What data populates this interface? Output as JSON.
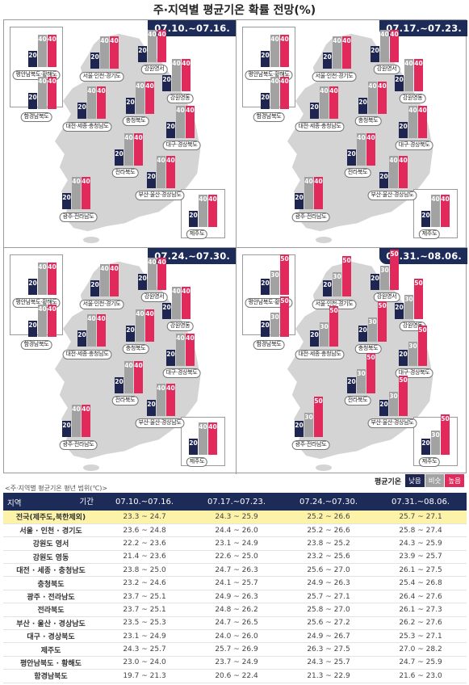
{
  "title": "주·지역별 평균기온 확률 전망(%)",
  "legend": {
    "title": "평균기온",
    "low": "낮음",
    "normal": "비슷",
    "high": "높음",
    "colors": {
      "low": "#1f2551",
      "normal": "#a2a2a2",
      "high": "#e12a5b"
    }
  },
  "table_caption": "<주·지역별 평균기온 평년 범위(℃)>",
  "table_header": {
    "region": "지역",
    "period": "기간"
  },
  "chart_data": [
    {
      "type": "bar",
      "period": "07.10.~07.16.",
      "series_order": [
        "낮음",
        "비슷",
        "높음"
      ],
      "regions": [
        {
          "name": "평안남북도·황해도",
          "values": [
            20,
            40,
            40
          ]
        },
        {
          "name": "함경남북도",
          "values": [
            20,
            40,
            40
          ]
        },
        {
          "name": "서울·인천·경기도",
          "values": [
            20,
            40,
            40
          ]
        },
        {
          "name": "강원영서",
          "values": [
            20,
            40,
            40
          ]
        },
        {
          "name": "강원영동",
          "values": [
            20,
            40,
            40
          ]
        },
        {
          "name": "대전·세종·충청남도",
          "values": [
            20,
            40,
            40
          ]
        },
        {
          "name": "충청북도",
          "values": [
            20,
            40,
            40
          ]
        },
        {
          "name": "대구·경상북도",
          "values": [
            20,
            40,
            40
          ]
        },
        {
          "name": "전라북도",
          "values": [
            20,
            40,
            40
          ]
        },
        {
          "name": "부산·울산·경상남도",
          "values": [
            20,
            40,
            40
          ]
        },
        {
          "name": "광주·전라남도",
          "values": [
            20,
            40,
            40
          ]
        },
        {
          "name": "제주도",
          "values": [
            20,
            40,
            40
          ]
        }
      ]
    },
    {
      "type": "bar",
      "period": "07.17.~07.23.",
      "series_order": [
        "낮음",
        "비슷",
        "높음"
      ],
      "regions": [
        {
          "name": "평안남북도·황해도",
          "values": [
            20,
            40,
            40
          ]
        },
        {
          "name": "함경남북도",
          "values": [
            20,
            40,
            40
          ]
        },
        {
          "name": "서울·인천·경기도",
          "values": [
            20,
            40,
            40
          ]
        },
        {
          "name": "강원영서",
          "values": [
            20,
            40,
            40
          ]
        },
        {
          "name": "강원영동",
          "values": [
            20,
            40,
            40
          ]
        },
        {
          "name": "대전·세종·충청남도",
          "values": [
            20,
            40,
            40
          ]
        },
        {
          "name": "충청북도",
          "values": [
            20,
            40,
            40
          ]
        },
        {
          "name": "대구·경상북도",
          "values": [
            20,
            40,
            40
          ]
        },
        {
          "name": "전라북도",
          "values": [
            20,
            40,
            40
          ]
        },
        {
          "name": "부산·울산·경상남도",
          "values": [
            20,
            40,
            40
          ]
        },
        {
          "name": "광주·전라남도",
          "values": [
            20,
            40,
            40
          ]
        },
        {
          "name": "제주도",
          "values": [
            20,
            40,
            40
          ]
        }
      ]
    },
    {
      "type": "bar",
      "period": "07.24.~07.30.",
      "series_order": [
        "낮음",
        "비슷",
        "높음"
      ],
      "regions": [
        {
          "name": "평안남북도·황해도",
          "values": [
            20,
            40,
            40
          ]
        },
        {
          "name": "함경남북도",
          "values": [
            20,
            40,
            40
          ]
        },
        {
          "name": "서울·인천·경기도",
          "values": [
            20,
            40,
            40
          ]
        },
        {
          "name": "강원영서",
          "values": [
            20,
            40,
            40
          ]
        },
        {
          "name": "강원영동",
          "values": [
            20,
            40,
            40
          ]
        },
        {
          "name": "대전·세종·충청남도",
          "values": [
            20,
            40,
            40
          ]
        },
        {
          "name": "충청북도",
          "values": [
            20,
            40,
            40
          ]
        },
        {
          "name": "대구·경상북도",
          "values": [
            20,
            40,
            40
          ]
        },
        {
          "name": "전라북도",
          "values": [
            20,
            40,
            40
          ]
        },
        {
          "name": "부산·울산·경상남도",
          "values": [
            20,
            40,
            40
          ]
        },
        {
          "name": "광주·전라남도",
          "values": [
            20,
            40,
            40
          ]
        },
        {
          "name": "제주도",
          "values": [
            20,
            40,
            40
          ]
        }
      ]
    },
    {
      "type": "bar",
      "period": "07.31.~08.06.",
      "series_order": [
        "낮음",
        "비슷",
        "높음"
      ],
      "regions": [
        {
          "name": "평안남북도·황해도",
          "values": [
            20,
            30,
            50
          ]
        },
        {
          "name": "함경남북도",
          "values": [
            20,
            30,
            50
          ]
        },
        {
          "name": "서울·인천·경기도",
          "values": [
            20,
            30,
            50
          ]
        },
        {
          "name": "강원영서",
          "values": [
            20,
            30,
            50
          ]
        },
        {
          "name": "강원영동",
          "values": [
            20,
            30,
            50
          ]
        },
        {
          "name": "대전·세종·충청남도",
          "values": [
            20,
            30,
            50
          ]
        },
        {
          "name": "충청북도",
          "values": [
            20,
            30,
            50
          ]
        },
        {
          "name": "대구·경상북도",
          "values": [
            20,
            30,
            50
          ]
        },
        {
          "name": "전라북도",
          "values": [
            20,
            30,
            50
          ]
        },
        {
          "name": "부산·울산·경상남도",
          "values": [
            20,
            30,
            50
          ]
        },
        {
          "name": "광주·전라남도",
          "values": [
            20,
            30,
            50
          ]
        },
        {
          "name": "제주도",
          "values": [
            20,
            30,
            50
          ]
        }
      ]
    }
  ],
  "table": {
    "periods": [
      "07.10.~07.16.",
      "07.17.~07.23.",
      "07.24.~07.30.",
      "07.31.~08.06."
    ],
    "rows": [
      {
        "region": "전국(제주도,북한제외)",
        "highlight": true,
        "ranges": [
          "23.3 ~ 24.7",
          "24.3 ~ 25.9",
          "25.2 ~ 26.6",
          "25.7 ~ 27.1"
        ]
      },
      {
        "region": "서울 · 인천 · 경기도",
        "ranges": [
          "23.6 ~ 24.8",
          "24.4 ~ 26.0",
          "25.2 ~ 26.6",
          "25.8 ~ 27.4"
        ]
      },
      {
        "region": "강원도 영서",
        "ranges": [
          "22.2 ~ 23.6",
          "23.1 ~ 24.9",
          "23.8 ~ 25.2",
          "24.3 ~ 25.9"
        ]
      },
      {
        "region": "강원도 영동",
        "ranges": [
          "21.4 ~ 23.6",
          "22.6 ~ 25.0",
          "23.2 ~ 25.6",
          "23.9 ~ 25.7"
        ]
      },
      {
        "region": "대전 · 세종 · 충청남도",
        "ranges": [
          "23.8 ~ 25.0",
          "24.7 ~ 26.3",
          "25.6 ~ 27.0",
          "26.1 ~ 27.5"
        ]
      },
      {
        "region": "충청북도",
        "ranges": [
          "23.2 ~ 24.6",
          "24.1 ~ 25.7",
          "24.9 ~ 26.3",
          "25.4 ~ 26.8"
        ]
      },
      {
        "region": "광주 · 전라남도",
        "ranges": [
          "23.7 ~ 25.1",
          "24.9 ~ 26.3",
          "25.7 ~ 27.1",
          "26.4 ~ 27.6"
        ]
      },
      {
        "region": "전라북도",
        "ranges": [
          "23.7 ~ 25.1",
          "24.8 ~ 26.2",
          "25.8 ~ 27.0",
          "26.1 ~ 27.3"
        ]
      },
      {
        "region": "부산 · 울산 · 경상남도",
        "ranges": [
          "23.5 ~ 25.3",
          "24.7 ~ 26.5",
          "25.6 ~ 27.2",
          "26.2 ~ 27.6"
        ]
      },
      {
        "region": "대구 · 경상북도",
        "ranges": [
          "23.1 ~ 24.9",
          "24.0 ~ 26.0",
          "24.9 ~ 26.7",
          "25.3 ~ 27.1"
        ]
      },
      {
        "region": "제주도",
        "ranges": [
          "24.3 ~ 25.7",
          "25.7 ~ 26.9",
          "26.3 ~ 27.5",
          "27.0 ~ 28.2"
        ]
      },
      {
        "region": "평안남북도 · 황해도",
        "ranges": [
          "23.0 ~ 24.0",
          "23.7 ~ 24.9",
          "24.3 ~ 25.7",
          "24.7 ~ 25.9"
        ]
      },
      {
        "region": "함경남북도",
        "ranges": [
          "19.7 ~ 21.3",
          "20.6 ~ 22.4",
          "21.3 ~ 22.9",
          "21.6 ~ 23.0"
        ]
      }
    ]
  }
}
